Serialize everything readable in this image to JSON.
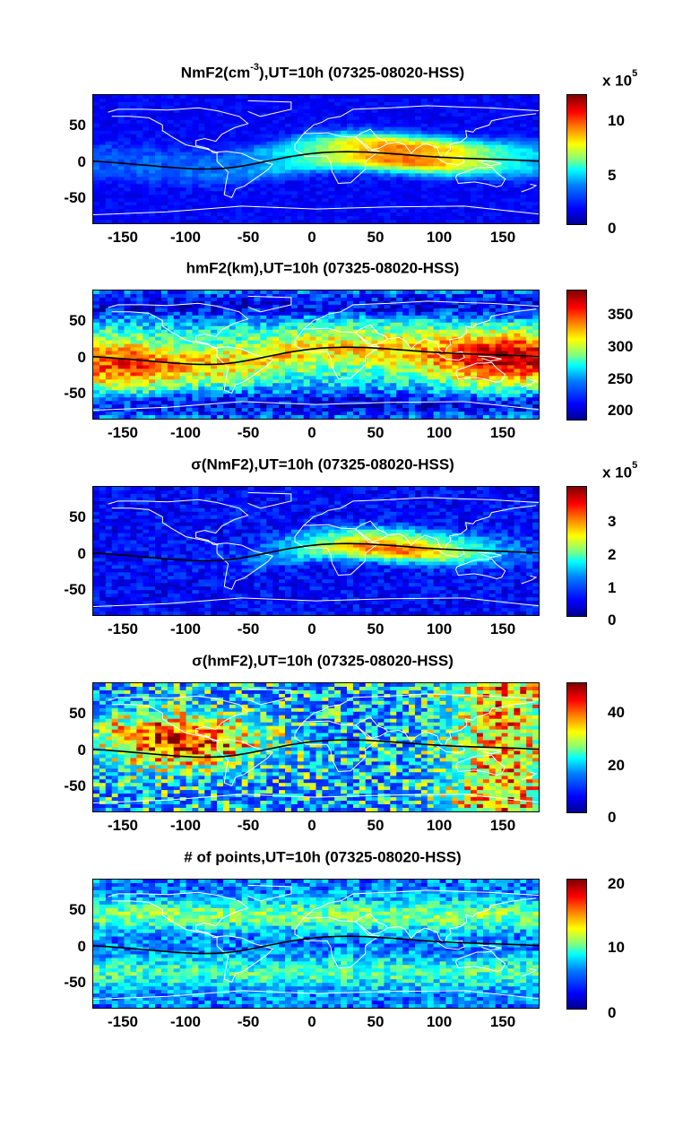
{
  "colors": {
    "colormap": [
      "#00008f",
      "#0000ff",
      "#007fff",
      "#00ffff",
      "#7fff7f",
      "#ffff00",
      "#ff7f00",
      "#ff0000",
      "#7f0000"
    ],
    "coastline": "#ffffff",
    "equator_line": "#000000"
  },
  "chart_data": [
    {
      "type": "heatmap",
      "title_main": "NmF2(cm",
      "title_sup": "-3",
      "title_rest": "),UT=10h (07325-08020-HSS)",
      "xlim": [
        -180,
        180
      ],
      "ylim": [
        -90,
        90
      ],
      "x_ticks": [
        "-150",
        "-100",
        "-50",
        "0",
        "50",
        "100",
        "150"
      ],
      "y_ticks": [
        "50",
        "0",
        "-50"
      ],
      "colorbar": {
        "ticks": [
          "10",
          "5",
          "0"
        ],
        "scale_label": "x 10",
        "scale_exp": "5",
        "range": [
          0,
          12
        ]
      },
      "overlays": [
        "coastlines",
        "magnetic-equator"
      ],
      "pattern": "nmf2"
    },
    {
      "type": "heatmap",
      "title_main": "hmF2(km),UT=10h (07325-08020-HSS)",
      "title_sup": "",
      "title_rest": "",
      "xlim": [
        -180,
        180
      ],
      "ylim": [
        -90,
        90
      ],
      "x_ticks": [
        "-150",
        "-100",
        "-50",
        "0",
        "50",
        "100",
        "150"
      ],
      "y_ticks": [
        "50",
        "0",
        "-50"
      ],
      "colorbar": {
        "ticks": [
          "350",
          "300",
          "250",
          "200"
        ],
        "scale_label": "",
        "scale_exp": "",
        "range": [
          180,
          380
        ]
      },
      "overlays": [
        "coastlines",
        "magnetic-equator"
      ],
      "pattern": "hmf2"
    },
    {
      "type": "heatmap",
      "title_main": "σ(NmF2),UT=10h (07325-08020-HSS)",
      "title_sup": "",
      "title_rest": "",
      "xlim": [
        -180,
        180
      ],
      "ylim": [
        -90,
        90
      ],
      "x_ticks": [
        "-150",
        "-100",
        "-50",
        "0",
        "50",
        "100",
        "150"
      ],
      "y_ticks": [
        "50",
        "0",
        "-50"
      ],
      "colorbar": {
        "ticks": [
          "3",
          "2",
          "1",
          "0"
        ],
        "scale_label": "x 10",
        "scale_exp": "5",
        "range": [
          0,
          4
        ]
      },
      "overlays": [
        "coastlines",
        "magnetic-equator"
      ],
      "pattern": "signmf2"
    },
    {
      "type": "heatmap",
      "title_main": "σ(hmF2),UT=10h (07325-08020-HSS)",
      "title_sup": "",
      "title_rest": "",
      "xlim": [
        -180,
        180
      ],
      "ylim": [
        -90,
        90
      ],
      "x_ticks": [
        "-150",
        "-100",
        "-50",
        "0",
        "50",
        "100",
        "150"
      ],
      "y_ticks": [
        "50",
        "0",
        "-50"
      ],
      "colorbar": {
        "ticks": [
          "40",
          "20",
          "0"
        ],
        "scale_label": "",
        "scale_exp": "",
        "range": [
          0,
          50
        ]
      },
      "overlays": [
        "coastlines",
        "magnetic-equator"
      ],
      "pattern": "sighmf2"
    },
    {
      "type": "heatmap",
      "title_main": "# of points,UT=10h (07325-08020-HSS)",
      "title_sup": "",
      "title_rest": "",
      "xlim": [
        -180,
        180
      ],
      "ylim": [
        -90,
        90
      ],
      "x_ticks": [
        "-150",
        "-100",
        "-50",
        "0",
        "50",
        "100",
        "150"
      ],
      "y_ticks": [
        "50",
        "0",
        "-50"
      ],
      "colorbar": {
        "ticks": [
          "20",
          "10",
          "0"
        ],
        "scale_label": "",
        "scale_exp": "",
        "range": [
          0,
          20
        ]
      },
      "overlays": [
        "coastlines",
        "magnetic-equator"
      ],
      "pattern": "npoints"
    }
  ]
}
